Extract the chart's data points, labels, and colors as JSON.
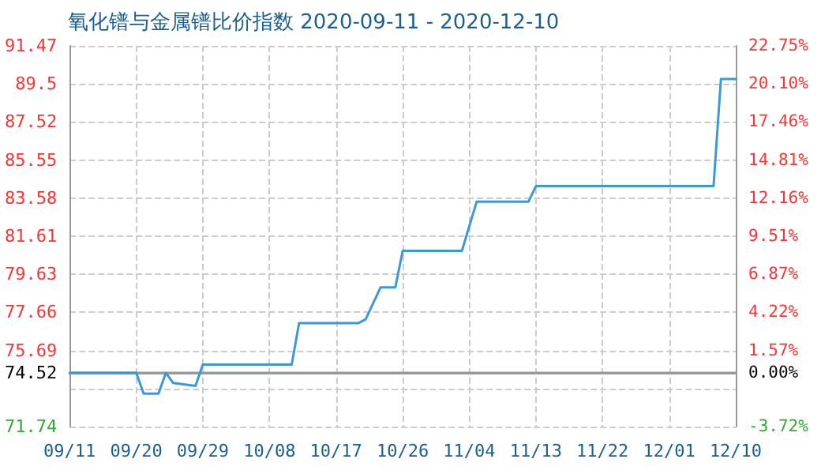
{
  "chart_data": {
    "type": "line",
    "title": "氧化镨与金属镨比价指数 2020-09-11 - 2020-12-10",
    "x": [
      "2020-09-11",
      "2020-09-20",
      "2020-09-21",
      "2020-09-23",
      "2020-09-24",
      "2020-09-25",
      "2020-09-28",
      "2020-09-29",
      "2020-10-11",
      "2020-10-12",
      "2020-10-20",
      "2020-10-21",
      "2020-10-23",
      "2020-10-25",
      "2020-10-26",
      "2020-11-03",
      "2020-11-05",
      "2020-11-12",
      "2020-11-13",
      "2020-12-07",
      "2020-12-08",
      "2020-12-10"
    ],
    "series": [
      {
        "color": "#3a9ad9",
        "values": [
          74.52,
          74.52,
          73.45,
          73.45,
          74.52,
          74.0,
          73.85,
          74.95,
          74.95,
          77.1,
          77.1,
          77.3,
          78.95,
          78.95,
          80.85,
          80.85,
          83.4,
          83.4,
          84.2,
          84.2,
          89.75,
          89.75
        ]
      }
    ],
    "xlim": [
      "2020-09-11",
      "2020-12-10"
    ],
    "xticks": [
      {
        "value": "2020-09-11",
        "label": "09/11"
      },
      {
        "value": "2020-09-20",
        "label": "09/20"
      },
      {
        "value": "2020-09-29",
        "label": "09/29"
      },
      {
        "value": "2020-10-08",
        "label": "10/08"
      },
      {
        "value": "2020-10-17",
        "label": "10/17"
      },
      {
        "value": "2020-10-26",
        "label": "10/26"
      },
      {
        "value": "2020-11-04",
        "label": "11/04"
      },
      {
        "value": "2020-11-13",
        "label": "11/13"
      },
      {
        "value": "2020-11-22",
        "label": "11/22"
      },
      {
        "value": "2020-12-01",
        "label": "12/01"
      },
      {
        "value": "2020-12-10",
        "label": "12/10"
      }
    ],
    "ylim": [
      71.74,
      91.47
    ],
    "yticks": [
      71.74,
      {
        "value": 73.72,
        "label": null
      },
      74.52,
      75.69,
      77.66,
      79.63,
      81.61,
      83.58,
      85.55,
      87.52,
      89.5,
      91.47
    ],
    "y2lim": [
      -3.72,
      22.75
    ],
    "y2ticks": [
      {
        "value": -3.72,
        "label": "-3.72%"
      },
      {
        "value": 0,
        "label": "0.00%"
      },
      {
        "value": 1.57,
        "label": "1.57%"
      },
      {
        "value": 4.22,
        "label": "4.22%"
      },
      {
        "value": 6.87,
        "label": "6.87%"
      },
      {
        "value": 9.51,
        "label": "9.51%"
      },
      {
        "value": 12.16,
        "label": "12.16%"
      },
      {
        "value": 14.81,
        "label": "14.81%"
      },
      {
        "value": 17.46,
        "label": "17.46%"
      },
      {
        "value": 20.1,
        "label": "20.10%"
      },
      {
        "value": 22.75,
        "label": "22.75%"
      }
    ],
    "ref_lines": [
      {
        "axis": "y",
        "value": 74.52,
        "color": "#999999"
      }
    ],
    "grid": true,
    "marker": "none",
    "line_style": "solid"
  }
}
